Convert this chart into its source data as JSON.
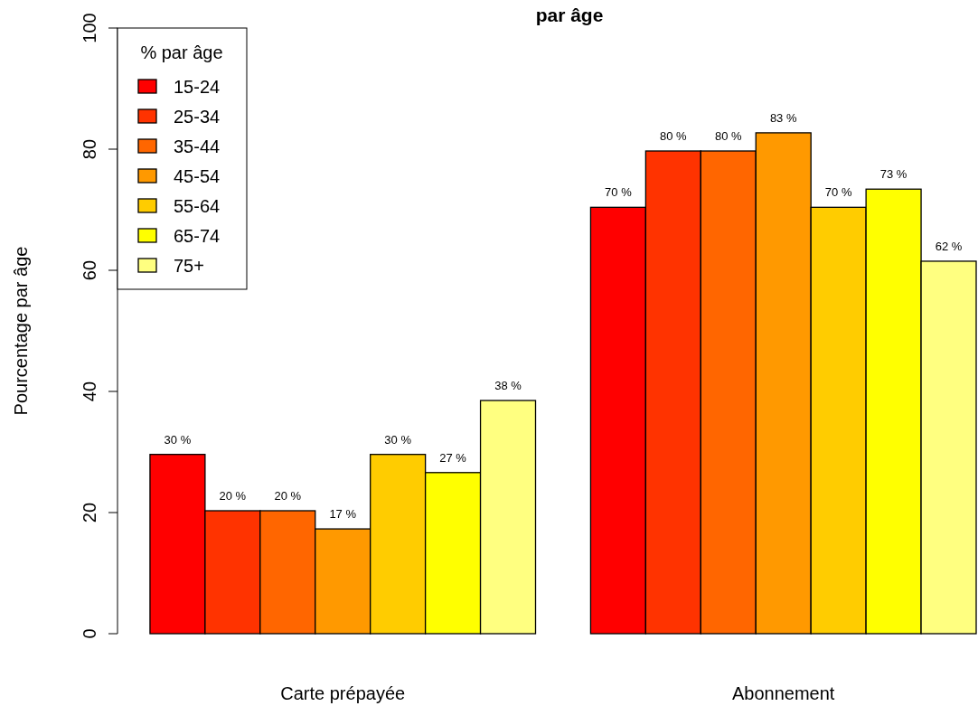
{
  "chart_data": {
    "type": "bar",
    "title": "par âge",
    "ylabel": "Pourcentage par âge",
    "legend_title": "% par âge",
    "categories": [
      "Carte prépayée",
      "Abonnement"
    ],
    "ylim": [
      0,
      100
    ],
    "yticks": [
      0,
      20,
      40,
      60,
      80,
      100
    ],
    "legend": "top left",
    "grid": false,
    "series": [
      {
        "name": "15-24",
        "color": "#ff0000",
        "values": [
          29.6,
          70.4
        ],
        "value_labels": [
          "30 %",
          "70 %"
        ]
      },
      {
        "name": "25-34",
        "color": "#ff3300",
        "values": [
          20.3,
          79.7
        ],
        "value_labels": [
          "20 %",
          "80 %"
        ]
      },
      {
        "name": "35-44",
        "color": "#ff6600",
        "values": [
          20.3,
          79.7
        ],
        "value_labels": [
          "20 %",
          "80 %"
        ]
      },
      {
        "name": "45-54",
        "color": "#ff9900",
        "values": [
          17.3,
          82.7
        ],
        "value_labels": [
          "17 %",
          "83 %"
        ]
      },
      {
        "name": "55-64",
        "color": "#ffcc00",
        "values": [
          29.6,
          70.4
        ],
        "value_labels": [
          "30 %",
          "70 %"
        ]
      },
      {
        "name": "65-74",
        "color": "#ffff00",
        "values": [
          26.6,
          73.4
        ],
        "value_labels": [
          "27 %",
          "73 %"
        ]
      },
      {
        "name": "75+",
        "color": "#ffff80",
        "values": [
          38.5,
          61.5
        ],
        "value_labels": [
          "38 %",
          "62 %"
        ]
      }
    ]
  }
}
